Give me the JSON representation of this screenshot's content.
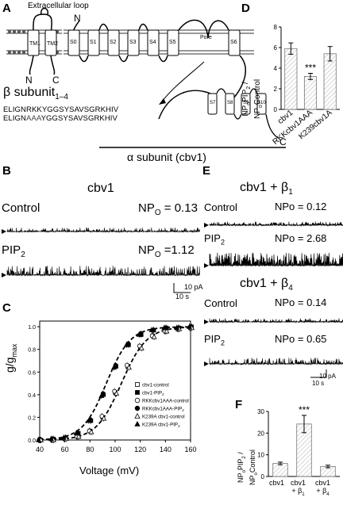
{
  "panels": {
    "A": {
      "label": "A",
      "extracellular_loop": "Extracellular loop",
      "N_beta": "N",
      "C_beta": "C",
      "N_alpha": "N",
      "C_alpha": "C",
      "beta_label": "β subunit",
      "beta_sub": "1–4",
      "tm1": "TM1",
      "tm2": "TM2",
      "segments": [
        "S0",
        "S1",
        "S2",
        "S3",
        "S4",
        "S5",
        "Pore",
        "S6",
        "S7",
        "S8",
        "S9",
        "S10"
      ],
      "seq1_pre": "ELIGNRKKYGGSYSAVSGRKHIV",
      "seq2_pre": "ELIGN",
      "seq2_mut": "AAA",
      "seq2_post": "YGGSYSAVSGRKHIV",
      "alpha_label": "α subunit (cbv1)"
    },
    "B": {
      "label": "B",
      "title": "cbv1",
      "rows": [
        {
          "cond": "Control",
          "np": "NP",
          "np_sub": "O",
          "np_val": " = 0.13"
        },
        {
          "cond": "PIP",
          "cond_sub": "2",
          "np": "NP",
          "np_sub": "O",
          "np_val": " =1.12"
        }
      ],
      "scale_y": "10 pA",
      "scale_x": "10 s"
    },
    "C": {
      "label": "C",
      "ylabel_pre": "g/g",
      "ylabel_sub": "max",
      "xlabel": "Voltage (mV)",
      "legend": [
        "cbv1-control",
        "cbv1-PIP2",
        "RKKcbv1AAA-control",
        "RKKcbv1AAA-PIP2",
        "K239A cbv1-control",
        "K239A cbv1-PIP2"
      ]
    },
    "D": {
      "label": "D",
      "ylabel": "NPo PIP2 / NPo Control",
      "sig": "***"
    },
    "E": {
      "label": "E",
      "title1": "cbv1 + β",
      "title1_sub": "1",
      "title2": "cbv1 + β",
      "title2_sub": "4",
      "rows": [
        {
          "cond": "Control",
          "np": "NPo = 0.12"
        },
        {
          "cond": "PIP",
          "cond_sub": "2",
          "np": "NPo = 2.68"
        },
        {
          "cond": "Control",
          "np": "NPo = 0.14"
        },
        {
          "cond": "PIP",
          "cond_sub": "2",
          "np": "NPo = 0.65"
        }
      ],
      "scale_y": "10 pA",
      "scale_x": "10 s"
    },
    "F": {
      "label": "F",
      "ylabel": "NPo PIP2 / NPo Control",
      "sig": "***",
      "cat1": "cbv1",
      "cat2_a": "cbv1",
      "cat2_b": "+ β",
      "cat2_sub": "1",
      "cat3_a": "cbv1",
      "cat3_b": "+ β",
      "cat3_sub": "4"
    }
  },
  "chart_data": [
    {
      "type": "scatter",
      "panel": "C",
      "xlabel": "Voltage (mV)",
      "ylabel": "g/gmax",
      "xlim": [
        40,
        160
      ],
      "ylim": [
        0,
        1.05
      ],
      "xticks": [
        "40",
        "60",
        "80",
        "100",
        "120",
        "140",
        "160"
      ],
      "yticks": [
        "0.0",
        "0.2",
        "0.4",
        "0.6",
        "0.8",
        "1.0"
      ],
      "x": [
        40,
        50,
        60,
        70,
        80,
        90,
        100,
        110,
        120,
        130,
        140,
        150,
        160
      ],
      "series": [
        {
          "name": "cbv1-control",
          "marker": "square-open",
          "values": [
            0.0,
            0.0,
            0.01,
            0.03,
            0.08,
            0.2,
            0.42,
            0.65,
            0.82,
            0.92,
            0.96,
            0.98,
            0.99
          ]
        },
        {
          "name": "cbv1-PIP2",
          "marker": "square-filled",
          "values": [
            0.0,
            0.01,
            0.02,
            0.06,
            0.17,
            0.4,
            0.65,
            0.84,
            0.93,
            0.97,
            0.99,
            0.99,
            1.0
          ]
        },
        {
          "name": "RKKcbv1AAA-control",
          "marker": "circle-open",
          "values": [
            0.0,
            0.0,
            0.01,
            0.03,
            0.08,
            0.21,
            0.43,
            0.66,
            0.83,
            0.92,
            0.96,
            0.98,
            0.99
          ]
        },
        {
          "name": "RKKcbv1AAA-PIP2",
          "marker": "circle-filled",
          "values": [
            0.0,
            0.01,
            0.02,
            0.06,
            0.18,
            0.41,
            0.66,
            0.85,
            0.94,
            0.97,
            0.99,
            0.99,
            1.0
          ]
        },
        {
          "name": "K239A cbv1-control",
          "marker": "triangle-open",
          "values": [
            0.0,
            0.0,
            0.01,
            0.03,
            0.07,
            0.19,
            0.41,
            0.64,
            0.81,
            0.91,
            0.96,
            0.98,
            0.99
          ]
        },
        {
          "name": "K239A cbv1-PIP2",
          "marker": "triangle-filled",
          "values": [
            0.0,
            0.01,
            0.02,
            0.06,
            0.17,
            0.39,
            0.64,
            0.84,
            0.93,
            0.97,
            0.99,
            0.99,
            1.0
          ]
        }
      ]
    },
    {
      "type": "bar",
      "panel": "D",
      "categories": [
        "cbv1",
        "RKKcbv1AAA",
        "K239cbv1A"
      ],
      "values": [
        5.9,
        3.2,
        5.4
      ],
      "errors": [
        0.55,
        0.3,
        0.7
      ],
      "ylim": [
        0,
        8
      ],
      "yticks": [
        "0",
        "2",
        "4",
        "6",
        "8"
      ]
    },
    {
      "type": "bar",
      "panel": "F",
      "categories": [
        "cbv1",
        "cbv1 + β1",
        "cbv1 + β4"
      ],
      "values": [
        6.0,
        24.2,
        4.6
      ],
      "errors": [
        0.6,
        4.0,
        0.6
      ],
      "ylim": [
        0,
        30
      ],
      "yticks": [
        "0",
        "10",
        "20",
        "30"
      ]
    }
  ]
}
